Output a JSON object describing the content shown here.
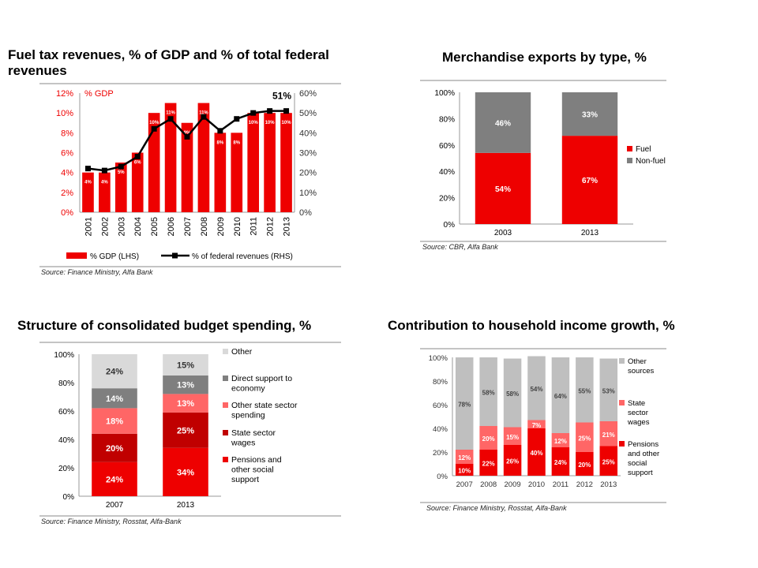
{
  "titles": {
    "fuel": "Fuel tax revenues, % of GDP and % of total federal revenues",
    "exports": "Merchandise exports by type, %",
    "budget": "Structure of consolidated budget spending, %",
    "income": "Contribution to household income growth, %"
  },
  "sources": {
    "fuel": "Source: Finance Ministry, Alfa Bank",
    "exports": "Source: CBR, Alfa Bank",
    "budget": "Source: Finance Ministry, Rosstat, Alfa-Bank",
    "income": "Source: Finance Ministry, Rosstat, Alfa-Bank"
  },
  "colors": {
    "red": "#ee0000",
    "dark_red": "#c00000",
    "pink": "#ff6666",
    "dark_gray": "#7f7f7f",
    "light_gray": "#d9d9d9",
    "mid_gray": "#bfbfbf"
  },
  "chart_data": [
    {
      "id": "fuel",
      "type": "bar",
      "categories": [
        "2001",
        "2002",
        "2003",
        "2004",
        "2005",
        "2006",
        "2007",
        "2008",
        "2009",
        "2010",
        "2011",
        "2012",
        "2013"
      ],
      "series": [
        {
          "name": "% GDP (LHS)",
          "type": "bar",
          "axis": "left",
          "values": [
            4,
            4,
            5,
            6,
            10,
            11,
            9,
            11,
            8,
            8,
            10,
            10,
            10
          ],
          "labels": [
            "4%",
            "4%",
            "5%",
            "6%",
            "10%",
            "11%",
            "9%",
            "11%",
            "8%",
            "8%",
            "10%",
            "10%",
            "10%"
          ]
        },
        {
          "name": "% of federal revenues (RHS)",
          "type": "line",
          "axis": "right",
          "values": [
            22,
            21,
            23,
            28,
            42,
            47,
            38,
            48,
            41,
            47,
            50,
            51,
            51
          ]
        }
      ],
      "left_axis": {
        "label": "% GDP",
        "ylim": [
          0,
          12
        ],
        "ticks": [
          "0%",
          "2%",
          "4%",
          "6%",
          "8%",
          "10%",
          "12%"
        ]
      },
      "right_axis": {
        "ylim": [
          0,
          60
        ],
        "ticks": [
          "0%",
          "10%",
          "20%",
          "30%",
          "40%",
          "50%",
          "60%"
        ]
      },
      "annotation": "51%",
      "legend_position": "bottom"
    },
    {
      "id": "exports",
      "type": "bar",
      "stacked": true,
      "categories": [
        "2003",
        "2013"
      ],
      "series": [
        {
          "name": "Fuel",
          "values": [
            54,
            67
          ],
          "labels": [
            "54%",
            "67%"
          ]
        },
        {
          "name": "Non-fuel",
          "values": [
            46,
            33
          ],
          "labels": [
            "46%",
            "33%"
          ]
        }
      ],
      "ylim": [
        0,
        100
      ],
      "ticks": [
        "0%",
        "20%",
        "40%",
        "60%",
        "80%",
        "100%"
      ],
      "legend_position": "right"
    },
    {
      "id": "budget",
      "type": "bar",
      "stacked": true,
      "categories": [
        "2007",
        "2013"
      ],
      "series": [
        {
          "name": "Pensions and other social support",
          "values": [
            24,
            34
          ],
          "labels": [
            "24%",
            "34%"
          ]
        },
        {
          "name": "State sector wages",
          "values": [
            20,
            25
          ],
          "labels": [
            "20%",
            "25%"
          ]
        },
        {
          "name": "Other state sector spending",
          "values": [
            18,
            13
          ],
          "labels": [
            "18%",
            "13%"
          ]
        },
        {
          "name": "Direct support to economy",
          "values": [
            14,
            13
          ],
          "labels": [
            "14%",
            "13%"
          ]
        },
        {
          "name": "Other",
          "values": [
            24,
            15
          ],
          "labels": [
            "24%",
            "15%"
          ]
        }
      ],
      "ylim": [
        0,
        100
      ],
      "ticks": [
        "0%",
        "20%",
        "40%",
        "60%",
        "80%",
        "100%"
      ],
      "legend_position": "right"
    },
    {
      "id": "income",
      "type": "bar",
      "stacked": true,
      "categories": [
        "2007",
        "2008",
        "2009",
        "2010",
        "2011",
        "2012",
        "2013"
      ],
      "series": [
        {
          "name": "Pensions and other social support",
          "values": [
            10,
            22,
            26,
            40,
            24,
            20,
            25
          ],
          "labels": [
            "10%",
            "22%",
            "26%",
            "40%",
            "24%",
            "20%",
            "25%"
          ]
        },
        {
          "name": "State sector wages",
          "values": [
            12,
            20,
            15,
            7,
            12,
            25,
            21
          ],
          "labels": [
            "12%",
            "20%",
            "15%",
            "7%",
            "12%",
            "25%",
            "21%"
          ]
        },
        {
          "name": "Other sources",
          "values": [
            78,
            58,
            58,
            54,
            64,
            55,
            53
          ],
          "labels": [
            "78%",
            "58%",
            "58%",
            "54%",
            "64%",
            "55%",
            "53%"
          ]
        }
      ],
      "ylim": [
        0,
        100
      ],
      "ticks": [
        "0%",
        "20%",
        "40%",
        "60%",
        "80%",
        "100%"
      ],
      "legend_position": "right"
    }
  ]
}
